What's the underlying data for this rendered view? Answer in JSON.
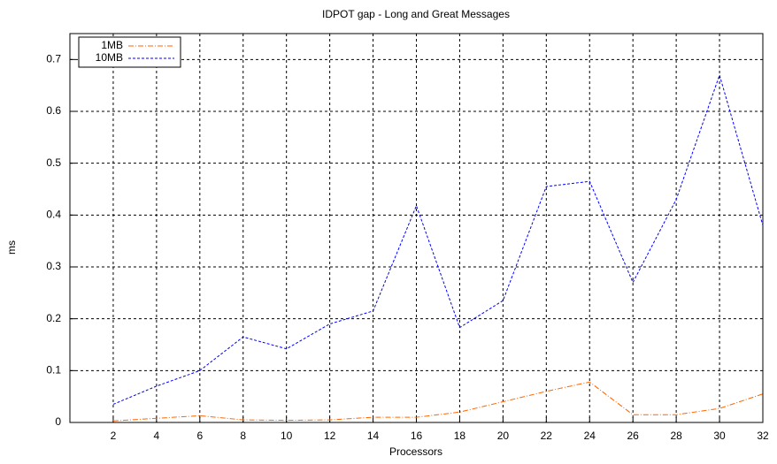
{
  "chart_data": {
    "type": "line",
    "title": "IDPOT gap - Long  and Great Messages",
    "x_label": "Processors",
    "y_label": "ms",
    "x": [
      2,
      4,
      6,
      8,
      10,
      12,
      14,
      16,
      18,
      20,
      22,
      24,
      26,
      28,
      30,
      32
    ],
    "series": [
      {
        "name": "1MB",
        "color": "#ff6600",
        "values": [
          0.003,
          0.008,
          0.013,
          0.005,
          0.004,
          0.005,
          0.01,
          0.01,
          0.02,
          0.04,
          0.06,
          0.078,
          0.015,
          0.015,
          0.027,
          0.055
        ]
      },
      {
        "name": "10MB",
        "color": "#0000ff",
        "values": [
          0.035,
          0.07,
          0.1,
          0.165,
          0.142,
          0.19,
          0.215,
          0.418,
          0.183,
          0.235,
          0.455,
          0.465,
          0.27,
          0.43,
          0.67,
          0.38
        ]
      }
    ],
    "xlim": [
      0,
      32
    ],
    "xticks": [
      2,
      4,
      6,
      8,
      10,
      12,
      14,
      16,
      18,
      20,
      22,
      24,
      26,
      28,
      30,
      32
    ],
    "ylim": [
      0,
      0.75
    ],
    "yticks": [
      0,
      0.1,
      0.2,
      0.3,
      0.4,
      0.5,
      0.6,
      0.7
    ],
    "grid": true,
    "legend": "top-left"
  }
}
